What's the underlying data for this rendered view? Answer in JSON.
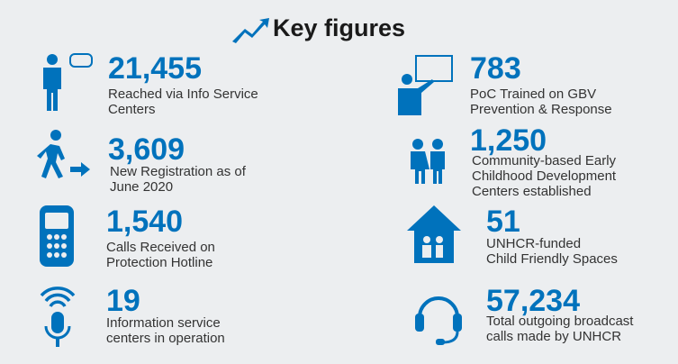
{
  "title": "Key figures",
  "items": [
    {
      "value": "21,455",
      "lines": [
        "Reached via Info Service",
        "Centers"
      ]
    },
    {
      "value": "3,609",
      "lines": [
        "New Registration as of",
        "June 2020"
      ]
    },
    {
      "value": "1,540",
      "lines": [
        "Calls Received on",
        "Protection Hotline"
      ]
    },
    {
      "value": "19",
      "lines": [
        "Information service",
        "centers in operation"
      ]
    },
    {
      "value": "783",
      "lines": [
        "PoC Trained on GBV",
        "Prevention & Response"
      ]
    },
    {
      "value": "1,250",
      "lines": [
        "Community-based Early",
        "Childhood Development",
        "Centers established"
      ]
    },
    {
      "value": "51",
      "lines": [
        "UNHCR-funded",
        "Child Friendly Spaces"
      ]
    },
    {
      "value": "57,234",
      "lines": [
        "Total outgoing broadcast",
        "calls made by UNHCR"
      ]
    }
  ]
}
